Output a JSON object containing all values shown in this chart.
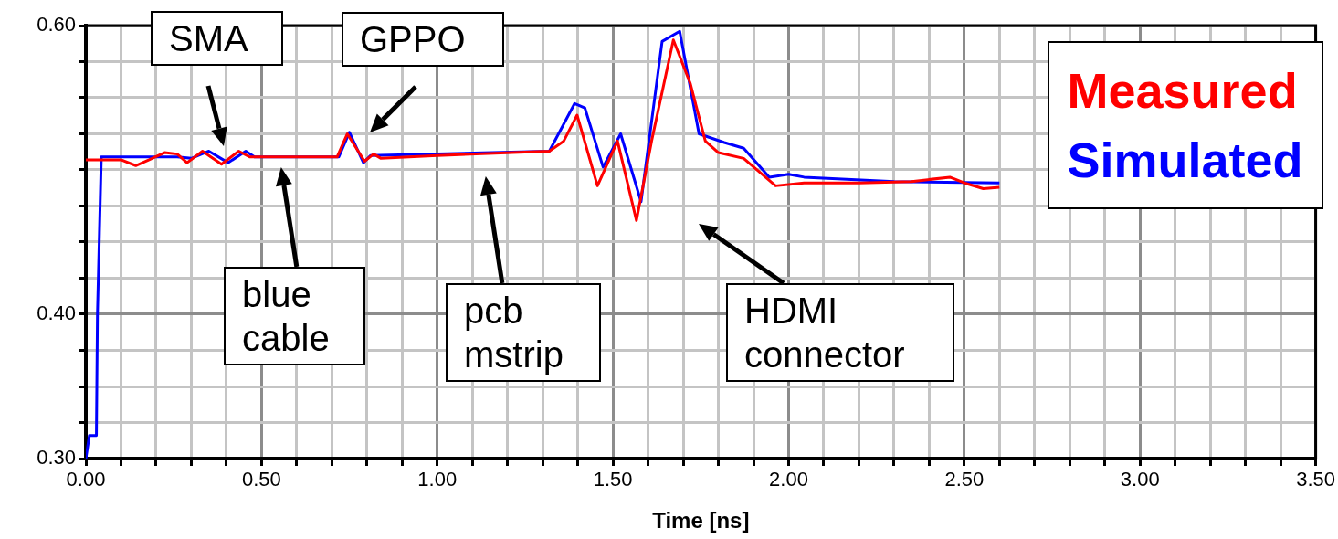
{
  "chart_data": {
    "type": "line",
    "xlabel": "Time [ns]",
    "xlim": [
      0,
      3.5
    ],
    "ylim": [
      0.3,
      0.6
    ],
    "xticks": [
      {
        "value": 0,
        "label": "0.00"
      },
      {
        "value": 0.1,
        "label": null
      },
      {
        "value": 0.2,
        "label": null
      },
      {
        "value": 0.3,
        "label": null
      },
      {
        "value": 0.4,
        "label": null
      },
      {
        "value": 0.5,
        "label": "0.50"
      },
      {
        "value": 0.6,
        "label": null
      },
      {
        "value": 0.7,
        "label": null
      },
      {
        "value": 0.8,
        "label": null
      },
      {
        "value": 0.9,
        "label": null
      },
      {
        "value": 1,
        "label": "1.00"
      },
      {
        "value": 1.1,
        "label": null
      },
      {
        "value": 1.2,
        "label": null
      },
      {
        "value": 1.3,
        "label": null
      },
      {
        "value": 1.4,
        "label": null
      },
      {
        "value": 1.5,
        "label": "1.50"
      },
      {
        "value": 1.6,
        "label": null
      },
      {
        "value": 1.7,
        "label": null
      },
      {
        "value": 1.8,
        "label": null
      },
      {
        "value": 1.9,
        "label": null
      },
      {
        "value": 2,
        "label": "2.00"
      },
      {
        "value": 2.1,
        "label": null
      },
      {
        "value": 2.2,
        "label": null
      },
      {
        "value": 2.3,
        "label": null
      },
      {
        "value": 2.4,
        "label": null
      },
      {
        "value": 2.5,
        "label": "2.50"
      },
      {
        "value": 2.6,
        "label": null
      },
      {
        "value": 2.7,
        "label": null
      },
      {
        "value": 2.8,
        "label": null
      },
      {
        "value": 2.9,
        "label": null
      },
      {
        "value": 3,
        "label": "3.00"
      },
      {
        "value": 3.1,
        "label": null
      },
      {
        "value": 3.2,
        "label": null
      },
      {
        "value": 3.3,
        "label": null
      },
      {
        "value": 3.4,
        "label": null
      },
      {
        "value": 3.5,
        "label": "3.50"
      }
    ],
    "yticks": [
      {
        "value": 0.3,
        "label": "0.30"
      },
      {
        "value": 0.325,
        "label": null
      },
      {
        "value": 0.35,
        "label": null
      },
      {
        "value": 0.375,
        "label": null
      },
      {
        "value": 0.4,
        "label": "0.40"
      },
      {
        "value": 0.425,
        "label": null
      },
      {
        "value": 0.45,
        "label": null
      },
      {
        "value": 0.475,
        "label": null
      },
      {
        "value": 0.5,
        "label": null
      },
      {
        "value": 0.525,
        "label": null
      },
      {
        "value": 0.55,
        "label": null
      },
      {
        "value": 0.575,
        "label": null
      },
      {
        "value": 0.6,
        "label": "0.60"
      }
    ],
    "grid": true,
    "legend": "top right",
    "marker": "none",
    "line_style": "solid",
    "series": [
      {
        "name": "Measured",
        "color": "#ff0000",
        "x": [
          0,
          0.1,
          0.142,
          0.18,
          0.224,
          0.26,
          0.288,
          0.332,
          0.386,
          0.435,
          0.466,
          0.6,
          0.715,
          0.744,
          0.793,
          0.819,
          0.84,
          1.0,
          1.319,
          1.36,
          1.398,
          1.456,
          1.513,
          1.567,
          1.61,
          1.672,
          1.72,
          1.763,
          1.8,
          1.872,
          1.963,
          2.044,
          2.2,
          2.35,
          2.459,
          2.5,
          2.554,
          2.6
        ],
        "values": [
          0.507,
          0.507,
          0.503,
          0.507,
          0.512,
          0.511,
          0.505,
          0.513,
          0.504,
          0.513,
          0.509,
          0.509,
          0.509,
          0.525,
          0.506,
          0.511,
          0.508,
          0.51,
          0.513,
          0.52,
          0.538,
          0.489,
          0.52,
          0.465,
          0.52,
          0.59,
          0.56,
          0.52,
          0.512,
          0.508,
          0.489,
          0.491,
          0.491,
          0.492,
          0.495,
          0.491,
          0.487,
          0.488
        ]
      },
      {
        "name": "Simulated",
        "color": "#0000ff",
        "x": [
          0,
          0.01,
          0.03,
          0.033,
          0.044,
          0.1,
          0.26,
          0.3,
          0.35,
          0.405,
          0.455,
          0.48,
          0.72,
          0.75,
          0.79,
          0.81,
          1.0,
          1.319,
          1.391,
          1.42,
          1.472,
          1.522,
          1.58,
          1.64,
          1.69,
          1.745,
          1.817,
          1.872,
          1.945,
          2.0,
          2.044,
          2.3,
          2.6
        ],
        "values": [
          0.3,
          0.316,
          0.316,
          0.4,
          0.509,
          0.509,
          0.509,
          0.508,
          0.513,
          0.505,
          0.513,
          0.509,
          0.509,
          0.526,
          0.505,
          0.51,
          0.511,
          0.513,
          0.546,
          0.543,
          0.502,
          0.525,
          0.478,
          0.589,
          0.596,
          0.525,
          0.519,
          0.515,
          0.495,
          0.497,
          0.495,
          0.492,
          0.491
        ]
      }
    ],
    "annotations": [
      "SMA",
      "GPPO",
      "blue cable",
      "pcb mstrip",
      "HDMI connector"
    ]
  }
}
